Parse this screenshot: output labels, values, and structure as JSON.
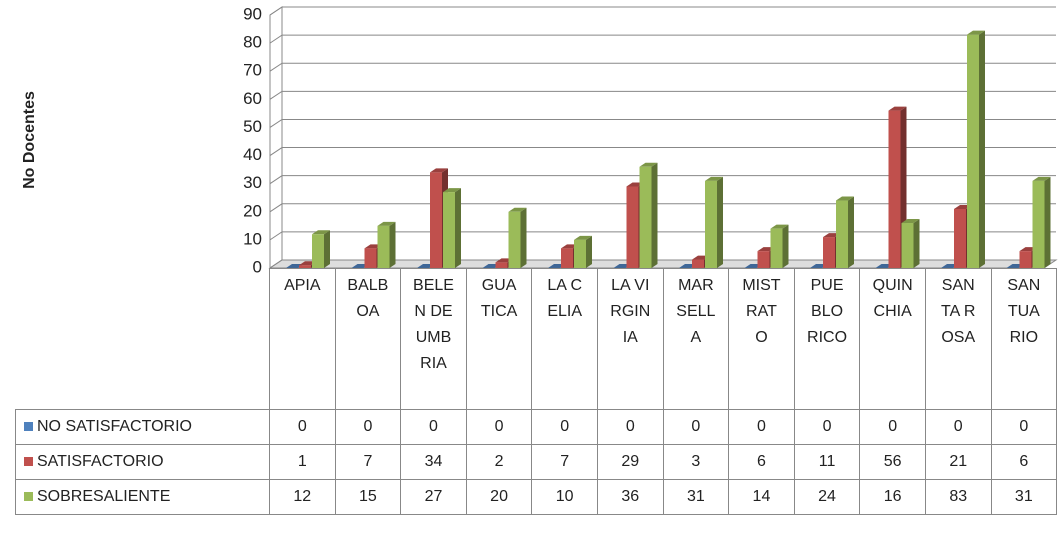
{
  "chart_data": {
    "type": "bar3d",
    "ylabel": "No Docentes",
    "categories": [
      "APIA",
      "BALBOA",
      "BELEN DE UMBRIA",
      "GUATICA",
      "LA CELIA",
      "LA VIRGINIA",
      "MARSELLA",
      "MISTRATO",
      "PUEBLO RICO",
      "QUINCHIA",
      "SANTA ROSA",
      "SANTUARIO"
    ],
    "series": [
      {
        "name": "NO SATISFACTORIO",
        "color": "#4f81bd",
        "values": [
          0,
          0,
          0,
          0,
          0,
          0,
          0,
          0,
          0,
          0,
          0,
          0
        ]
      },
      {
        "name": "SATISFACTORIO",
        "color": "#c0504d",
        "values": [
          1,
          7,
          34,
          2,
          7,
          29,
          3,
          6,
          11,
          56,
          21,
          6
        ]
      },
      {
        "name": "SOBRESALIENTE",
        "color": "#9bbb59",
        "values": [
          12,
          15,
          27,
          20,
          10,
          36,
          31,
          14,
          24,
          16,
          83,
          31
        ]
      }
    ],
    "ylim": [
      0,
      90
    ],
    "yticks": [
      0,
      10,
      20,
      30,
      40,
      50,
      60,
      70,
      80,
      90
    ],
    "grid": true
  }
}
